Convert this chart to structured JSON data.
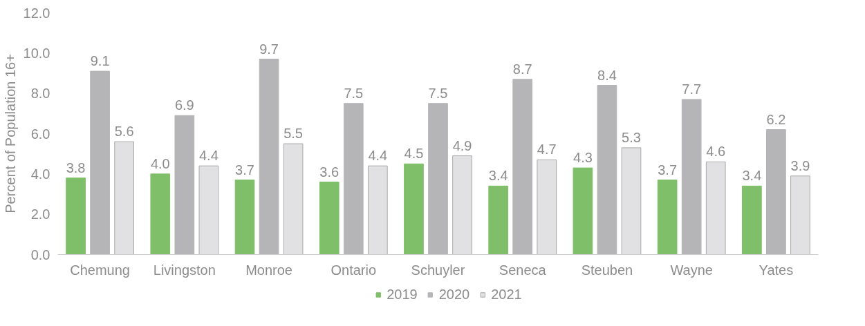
{
  "chart_data": {
    "type": "bar",
    "ylabel": "Percent of Population 16+",
    "categories": [
      "Chemung",
      "Livingston",
      "Monroe",
      "Ontario",
      "Schuyler",
      "Seneca",
      "Steuben",
      "Wayne",
      "Yates"
    ],
    "series": [
      {
        "name": "2019",
        "color": "#80bf6a",
        "values": [
          3.8,
          4.0,
          3.7,
          3.6,
          4.5,
          3.4,
          4.3,
          3.7,
          3.4
        ],
        "value_labels": [
          "3.8",
          "4.0",
          "3.7",
          "3.6",
          "4.5",
          "3.4",
          "4.3",
          "3.7",
          "3.4"
        ]
      },
      {
        "name": "2020",
        "color": "#b5b5b7",
        "values": [
          9.1,
          6.9,
          9.7,
          7.5,
          7.5,
          8.7,
          8.4,
          7.7,
          6.2
        ],
        "value_labels": [
          "9.1",
          "6.9",
          "9.7",
          "7.5",
          "7.5",
          "8.7",
          "8.4",
          "7.7",
          "6.2"
        ]
      },
      {
        "name": "2021",
        "color": "#e1e1e3",
        "values": [
          5.6,
          4.4,
          5.5,
          4.4,
          4.9,
          4.7,
          5.3,
          4.6,
          3.9
        ],
        "value_labels": [
          "5.6",
          "4.4",
          "5.5",
          "4.4",
          "4.9",
          "4.7",
          "5.3",
          "4.6",
          "3.9"
        ]
      }
    ],
    "ylim": [
      0,
      12
    ],
    "yticks": [
      {
        "value": 0,
        "label": "0.0"
      },
      {
        "value": 2,
        "label": "2.0"
      },
      {
        "value": 4,
        "label": "4.0"
      },
      {
        "value": 6,
        "label": "6.0"
      },
      {
        "value": 8,
        "label": "8.0"
      },
      {
        "value": 10,
        "label": "10.0"
      },
      {
        "value": 12,
        "label": "12.0"
      }
    ],
    "grid": false,
    "legend": "bottom"
  }
}
